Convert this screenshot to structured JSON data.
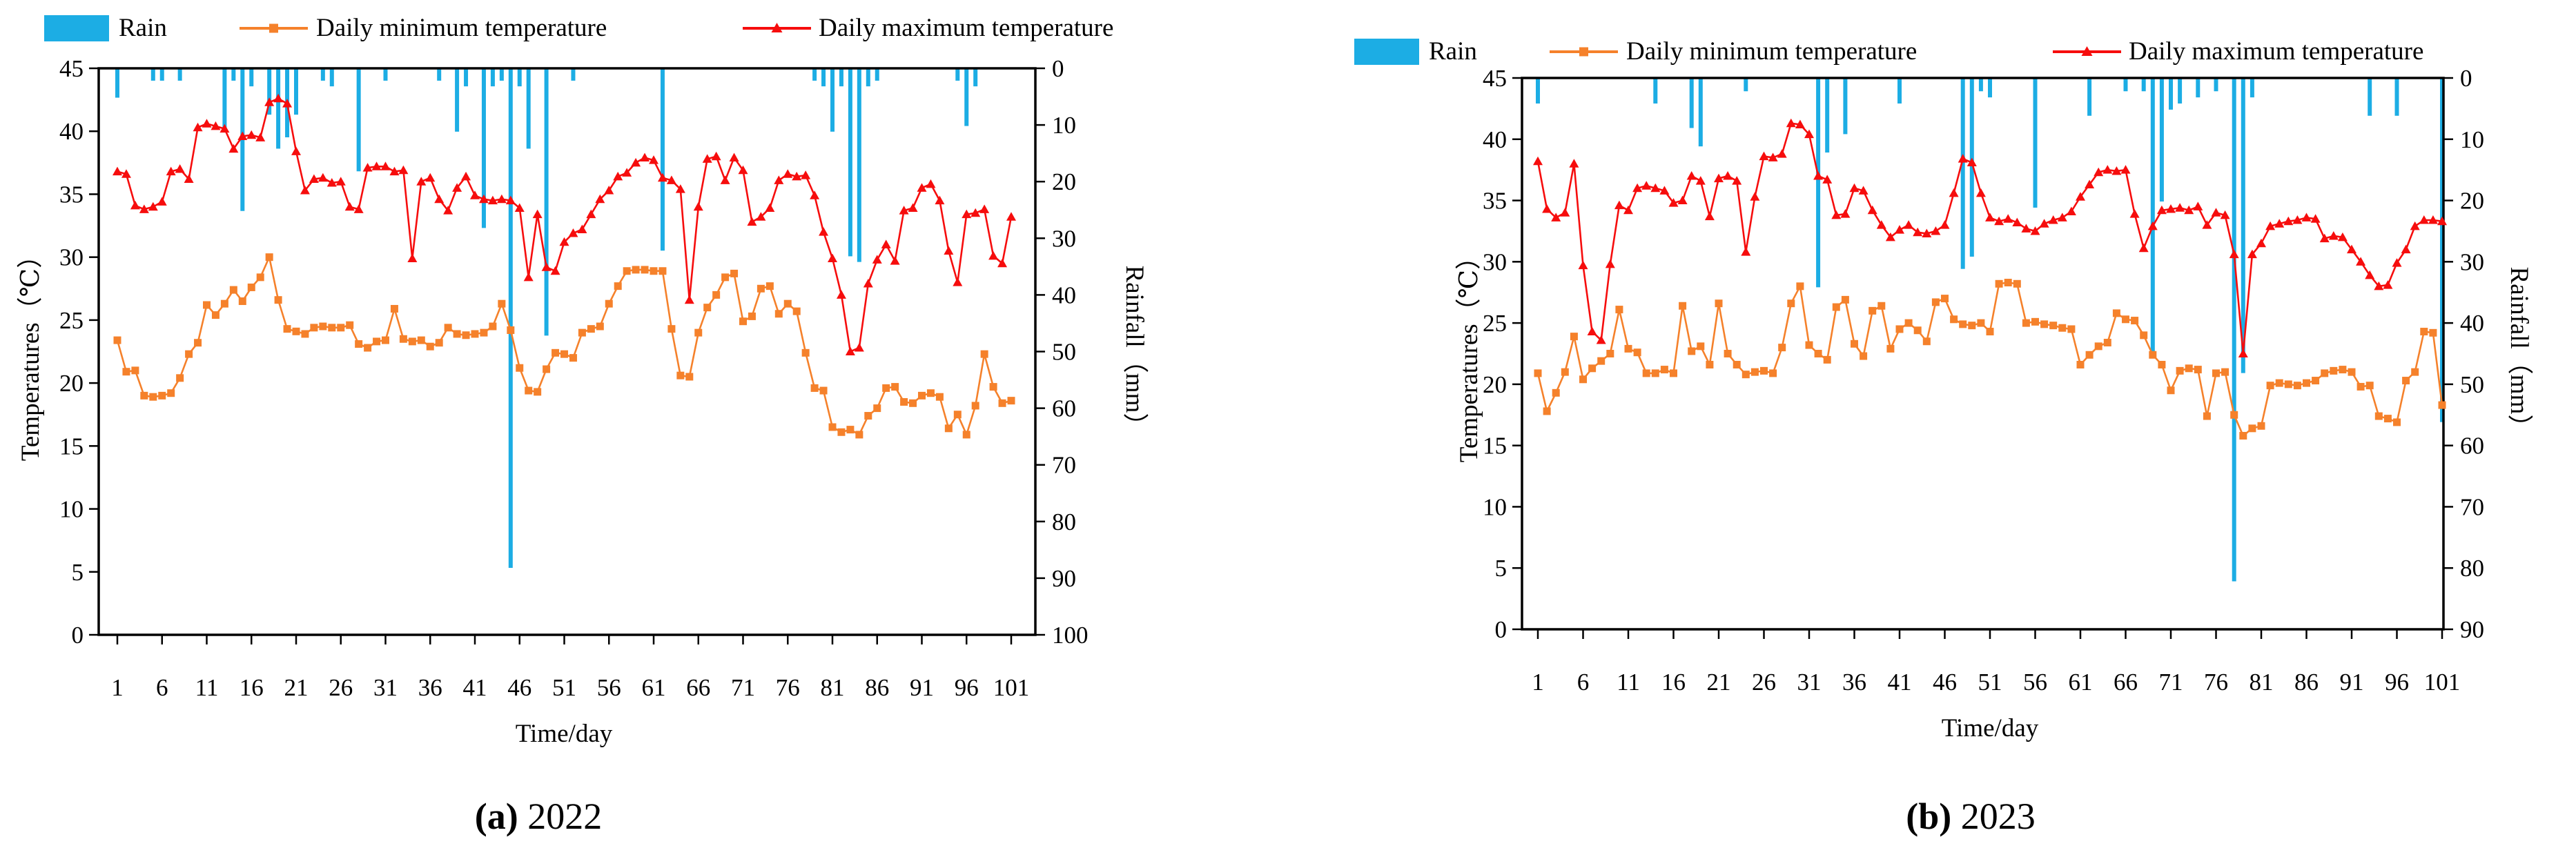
{
  "legend": {
    "rain": "Rain",
    "min": "Daily minimum temperature",
    "max": "Daily maximum temperature"
  },
  "colors": {
    "rain": "#1cade4",
    "min": "#f5812b",
    "max": "#f60d0d",
    "axis": "#000000"
  },
  "captions": [
    {
      "label": "(a)",
      "year": "2022"
    },
    {
      "label": "(b)",
      "year": "2023"
    }
  ],
  "chart_data": [
    {
      "id": "a",
      "type": "bar+line",
      "title": "(a) 2022",
      "x": {
        "label": "Time/day",
        "min": 1,
        "max": 101,
        "ticks": [
          1,
          6,
          11,
          16,
          21,
          26,
          31,
          36,
          41,
          46,
          51,
          56,
          61,
          66,
          71,
          76,
          81,
          86,
          91,
          96,
          101
        ]
      },
      "y_temp": {
        "label": "Temperatures（℃）",
        "min": 0,
        "max": 45,
        "ticks": [
          0,
          5,
          10,
          15,
          20,
          25,
          30,
          35,
          40,
          45
        ]
      },
      "y_rain": {
        "label": "Rainfall（mm）",
        "min": 0,
        "max": 100,
        "inverted": true,
        "ticks": [
          0,
          10,
          20,
          30,
          40,
          50,
          60,
          70,
          80,
          90,
          100
        ]
      },
      "series": {
        "rain": {
          "name": "Rain",
          "unit": "mm",
          "axis": "y_rain",
          "marker": "bar",
          "points": [
            [
              1,
              5
            ],
            [
              5,
              2
            ],
            [
              6,
              2
            ],
            [
              8,
              2
            ],
            [
              13,
              11
            ],
            [
              14,
              2
            ],
            [
              15,
              25
            ],
            [
              16,
              3
            ],
            [
              18,
              8
            ],
            [
              19,
              14
            ],
            [
              20,
              12
            ],
            [
              21,
              8
            ],
            [
              24,
              2
            ],
            [
              25,
              3
            ],
            [
              28,
              18
            ],
            [
              31,
              2
            ],
            [
              37,
              2
            ],
            [
              39,
              11
            ],
            [
              40,
              3
            ],
            [
              42,
              28
            ],
            [
              43,
              3
            ],
            [
              44,
              2
            ],
            [
              45,
              88
            ],
            [
              46,
              3
            ],
            [
              47,
              14
            ],
            [
              49,
              47
            ],
            [
              52,
              2
            ],
            [
              62,
              32
            ],
            [
              79,
              2
            ],
            [
              80,
              3
            ],
            [
              81,
              11
            ],
            [
              82,
              3
            ],
            [
              83,
              33
            ],
            [
              84,
              34
            ],
            [
              85,
              3
            ],
            [
              86,
              2
            ],
            [
              95,
              2
            ],
            [
              96,
              10
            ],
            [
              97,
              3
            ]
          ]
        },
        "tmin": {
          "name": "Daily minimum temperature",
          "unit": "℃",
          "axis": "y_temp",
          "marker": "square",
          "values": [
            23.4,
            20.9,
            21.0,
            19.0,
            18.9,
            19.0,
            19.2,
            20.4,
            22.3,
            23.2,
            26.2,
            25.4,
            26.3,
            27.4,
            26.5,
            27.6,
            28.4,
            30.0,
            26.6,
            24.3,
            24.1,
            23.9,
            24.4,
            24.5,
            24.4,
            24.4,
            24.6,
            23.1,
            22.8,
            23.3,
            23.4,
            25.9,
            23.5,
            23.3,
            23.4,
            22.9,
            23.2,
            24.4,
            23.9,
            23.8,
            23.9,
            24.0,
            24.5,
            26.3,
            24.2,
            21.2,
            19.4,
            19.3,
            21.1,
            22.4,
            22.3,
            22.0,
            24.0,
            24.3,
            24.5,
            26.3,
            27.7,
            28.9,
            29.0,
            29.0,
            28.9,
            28.9,
            24.3,
            20.6,
            20.5,
            24.0,
            26.0,
            27.0,
            28.4,
            28.7,
            24.9,
            25.3,
            27.5,
            27.7,
            25.5,
            26.3,
            25.7,
            22.4,
            19.6,
            19.4,
            16.5,
            16.1,
            16.3,
            15.9,
            17.4,
            18.0,
            19.6,
            19.7,
            18.5,
            18.4,
            19.0,
            19.2,
            18.9,
            16.4,
            17.5,
            15.9,
            18.2,
            22.3,
            19.7,
            18.4,
            18.6
          ]
        },
        "tmax": {
          "name": "Daily maximum temperature",
          "unit": "℃",
          "axis": "y_temp",
          "marker": "triangle",
          "values": [
            36.8,
            36.6,
            34.1,
            33.8,
            34.0,
            34.4,
            36.8,
            37.0,
            36.2,
            40.3,
            40.6,
            40.4,
            40.2,
            38.6,
            39.6,
            39.7,
            39.5,
            42.3,
            42.6,
            42.2,
            38.4,
            35.3,
            36.2,
            36.3,
            35.9,
            36.0,
            34.0,
            33.8,
            37.1,
            37.2,
            37.2,
            36.8,
            36.9,
            29.9,
            36.0,
            36.3,
            34.6,
            33.7,
            35.5,
            36.4,
            34.9,
            34.6,
            34.5,
            34.6,
            34.5,
            33.9,
            28.4,
            33.4,
            29.2,
            28.9,
            31.2,
            31.9,
            32.2,
            33.4,
            34.6,
            35.3,
            36.4,
            36.7,
            37.5,
            37.9,
            37.7,
            36.3,
            36.1,
            35.4,
            26.6,
            34.0,
            37.8,
            38.0,
            36.1,
            37.9,
            36.9,
            32.8,
            33.2,
            33.9,
            36.1,
            36.6,
            36.4,
            36.5,
            34.9,
            32.0,
            29.9,
            27.0,
            22.5,
            22.8,
            27.9,
            29.8,
            31.0,
            29.7,
            33.7,
            33.9,
            35.5,
            35.8,
            34.5,
            30.5,
            28.0,
            33.4,
            33.5,
            33.8,
            30.1,
            29.5,
            33.2
          ]
        }
      }
    },
    {
      "id": "b",
      "type": "bar+line",
      "title": "(b) 2023",
      "x": {
        "label": "Time/day",
        "min": 1,
        "max": 101,
        "ticks": [
          1,
          6,
          11,
          16,
          21,
          26,
          31,
          36,
          41,
          46,
          51,
          56,
          61,
          66,
          71,
          76,
          81,
          86,
          91,
          96,
          101
        ]
      },
      "y_temp": {
        "label": "Temperatures（℃）",
        "min": 0,
        "max": 45,
        "ticks": [
          0,
          5,
          10,
          15,
          20,
          25,
          30,
          35,
          40,
          45
        ]
      },
      "y_rain": {
        "label": "Rainfall（mm）",
        "min": 0,
        "max": 90,
        "inverted": true,
        "ticks": [
          0,
          10,
          20,
          30,
          40,
          50,
          60,
          70,
          80,
          90
        ]
      },
      "series": {
        "rain": {
          "name": "Rain",
          "unit": "mm",
          "axis": "y_rain",
          "marker": "bar",
          "points": [
            [
              1,
              4
            ],
            [
              14,
              4
            ],
            [
              18,
              8
            ],
            [
              19,
              11
            ],
            [
              24,
              2
            ],
            [
              32,
              34
            ],
            [
              33,
              12
            ],
            [
              35,
              9
            ],
            [
              41,
              4
            ],
            [
              48,
              31
            ],
            [
              49,
              29
            ],
            [
              50,
              2
            ],
            [
              51,
              3
            ],
            [
              56,
              21
            ],
            [
              62,
              6
            ],
            [
              66,
              2
            ],
            [
              68,
              2
            ],
            [
              69,
              45
            ],
            [
              70,
              20
            ],
            [
              71,
              5
            ],
            [
              72,
              4
            ],
            [
              74,
              3
            ],
            [
              76,
              2
            ],
            [
              78,
              82
            ],
            [
              79,
              48
            ],
            [
              80,
              3
            ],
            [
              93,
              6
            ],
            [
              96,
              6
            ],
            [
              101,
              56
            ]
          ]
        },
        "tmin": {
          "name": "Daily minimum temperature",
          "unit": "℃",
          "axis": "y_temp",
          "marker": "square",
          "values": [
            20.9,
            17.8,
            19.3,
            21.0,
            23.9,
            20.4,
            21.3,
            21.9,
            22.5,
            26.1,
            22.9,
            22.6,
            20.9,
            20.9,
            21.2,
            20.9,
            26.4,
            22.7,
            23.1,
            21.6,
            26.6,
            22.5,
            21.6,
            20.8,
            21.0,
            21.1,
            20.9,
            23.0,
            26.6,
            28.0,
            23.2,
            22.5,
            22.0,
            26.3,
            26.9,
            23.3,
            22.3,
            26.0,
            26.4,
            22.9,
            24.5,
            25.0,
            24.4,
            23.5,
            26.7,
            27.0,
            25.3,
            24.9,
            24.8,
            25.0,
            24.3,
            28.2,
            28.3,
            28.2,
            25.0,
            25.1,
            24.9,
            24.8,
            24.6,
            24.5,
            21.6,
            22.4,
            23.1,
            23.4,
            25.8,
            25.3,
            25.2,
            24.0,
            22.4,
            21.6,
            19.5,
            21.1,
            21.3,
            21.2,
            17.4,
            20.9,
            21.0,
            17.5,
            15.8,
            16.4,
            16.6,
            19.9,
            20.1,
            20.0,
            19.9,
            20.1,
            20.3,
            20.9,
            21.1,
            21.2,
            21.0,
            19.8,
            19.9,
            17.4,
            17.2,
            16.9,
            20.3,
            21.0,
            24.3,
            24.2,
            18.3
          ]
        },
        "tmax": {
          "name": "Daily maximum temperature",
          "unit": "℃",
          "axis": "y_temp",
          "marker": "triangle",
          "values": [
            38.2,
            34.3,
            33.6,
            34.0,
            38.0,
            29.7,
            24.3,
            23.6,
            29.8,
            34.6,
            34.2,
            36.0,
            36.2,
            36.0,
            35.8,
            34.8,
            35.0,
            37.0,
            36.6,
            33.7,
            36.8,
            37.0,
            36.6,
            30.8,
            35.3,
            38.6,
            38.5,
            38.8,
            41.3,
            41.2,
            40.4,
            37.0,
            36.7,
            33.8,
            33.9,
            36.0,
            35.8,
            34.2,
            33.0,
            32.0,
            32.6,
            33.0,
            32.4,
            32.3,
            32.5,
            33.0,
            35.6,
            38.4,
            38.1,
            35.6,
            33.6,
            33.3,
            33.5,
            33.2,
            32.7,
            32.5,
            33.1,
            33.4,
            33.6,
            34.1,
            35.3,
            36.3,
            37.3,
            37.5,
            37.4,
            37.5,
            33.9,
            31.1,
            32.9,
            34.2,
            34.3,
            34.4,
            34.2,
            34.5,
            33.0,
            34.0,
            33.8,
            30.6,
            22.5,
            30.6,
            31.5,
            32.9,
            33.1,
            33.3,
            33.4,
            33.6,
            33.5,
            31.9,
            32.1,
            32.0,
            31.0,
            30.0,
            28.9,
            28.0,
            28.1,
            29.9,
            31.0,
            32.9,
            33.4,
            33.4,
            33.3
          ]
        }
      }
    }
  ]
}
